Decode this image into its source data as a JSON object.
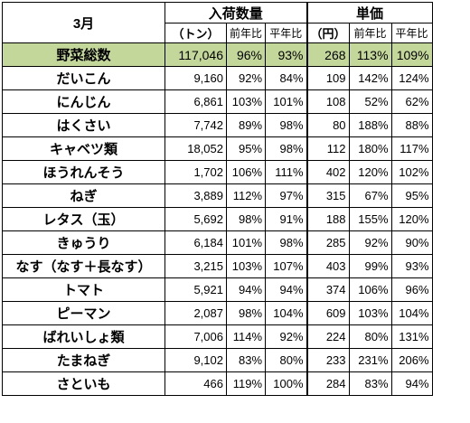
{
  "header": {
    "month": "3月",
    "volume_group": "入荷数量",
    "price_group": "単価",
    "volume_unit": "（トン）",
    "price_unit": "（円）",
    "yoy": "前年比",
    "avg": "平年比"
  },
  "rows": [
    {
      "name": "野菜総数",
      "volume": "117,046",
      "vol_yoy": "96%",
      "vol_avg": "93%",
      "price": "268",
      "price_yoy": "113%",
      "price_avg": "109%"
    },
    {
      "name": "だいこん",
      "volume": "9,160",
      "vol_yoy": "92%",
      "vol_avg": "84%",
      "price": "109",
      "price_yoy": "142%",
      "price_avg": "124%"
    },
    {
      "name": "にんじん",
      "volume": "6,861",
      "vol_yoy": "103%",
      "vol_avg": "101%",
      "price": "108",
      "price_yoy": "52%",
      "price_avg": "62%"
    },
    {
      "name": "はくさい",
      "volume": "7,742",
      "vol_yoy": "89%",
      "vol_avg": "98%",
      "price": "80",
      "price_yoy": "188%",
      "price_avg": "88%"
    },
    {
      "name": "キャベツ類",
      "volume": "18,052",
      "vol_yoy": "95%",
      "vol_avg": "98%",
      "price": "112",
      "price_yoy": "180%",
      "price_avg": "117%"
    },
    {
      "name": "ほうれんそう",
      "volume": "1,702",
      "vol_yoy": "106%",
      "vol_avg": "111%",
      "price": "402",
      "price_yoy": "120%",
      "price_avg": "102%"
    },
    {
      "name": "ねぎ",
      "volume": "3,889",
      "vol_yoy": "112%",
      "vol_avg": "97%",
      "price": "315",
      "price_yoy": "67%",
      "price_avg": "95%"
    },
    {
      "name": "レタス（玉）",
      "volume": "5,692",
      "vol_yoy": "98%",
      "vol_avg": "91%",
      "price": "188",
      "price_yoy": "155%",
      "price_avg": "120%"
    },
    {
      "name": "きゅうり",
      "volume": "6,184",
      "vol_yoy": "101%",
      "vol_avg": "98%",
      "price": "285",
      "price_yoy": "92%",
      "price_avg": "90%"
    },
    {
      "name": "なす（なす＋長なす）",
      "volume": "3,215",
      "vol_yoy": "103%",
      "vol_avg": "107%",
      "price": "403",
      "price_yoy": "99%",
      "price_avg": "93%"
    },
    {
      "name": "トマト",
      "volume": "5,921",
      "vol_yoy": "94%",
      "vol_avg": "94%",
      "price": "374",
      "price_yoy": "106%",
      "price_avg": "96%"
    },
    {
      "name": "ピーマン",
      "volume": "2,087",
      "vol_yoy": "98%",
      "vol_avg": "104%",
      "price": "609",
      "price_yoy": "103%",
      "price_avg": "104%"
    },
    {
      "name": "ばれいしょ類",
      "volume": "7,006",
      "vol_yoy": "114%",
      "vol_avg": "92%",
      "price": "224",
      "price_yoy": "80%",
      "price_avg": "131%"
    },
    {
      "name": "たまねぎ",
      "volume": "9,102",
      "vol_yoy": "83%",
      "vol_avg": "80%",
      "price": "233",
      "price_yoy": "231%",
      "price_avg": "206%"
    },
    {
      "name": "さといも",
      "volume": "466",
      "vol_yoy": "119%",
      "vol_avg": "100%",
      "price": "284",
      "price_yoy": "83%",
      "price_avg": "94%"
    }
  ],
  "colors": {
    "total_row_bg": "#c4d79b"
  }
}
